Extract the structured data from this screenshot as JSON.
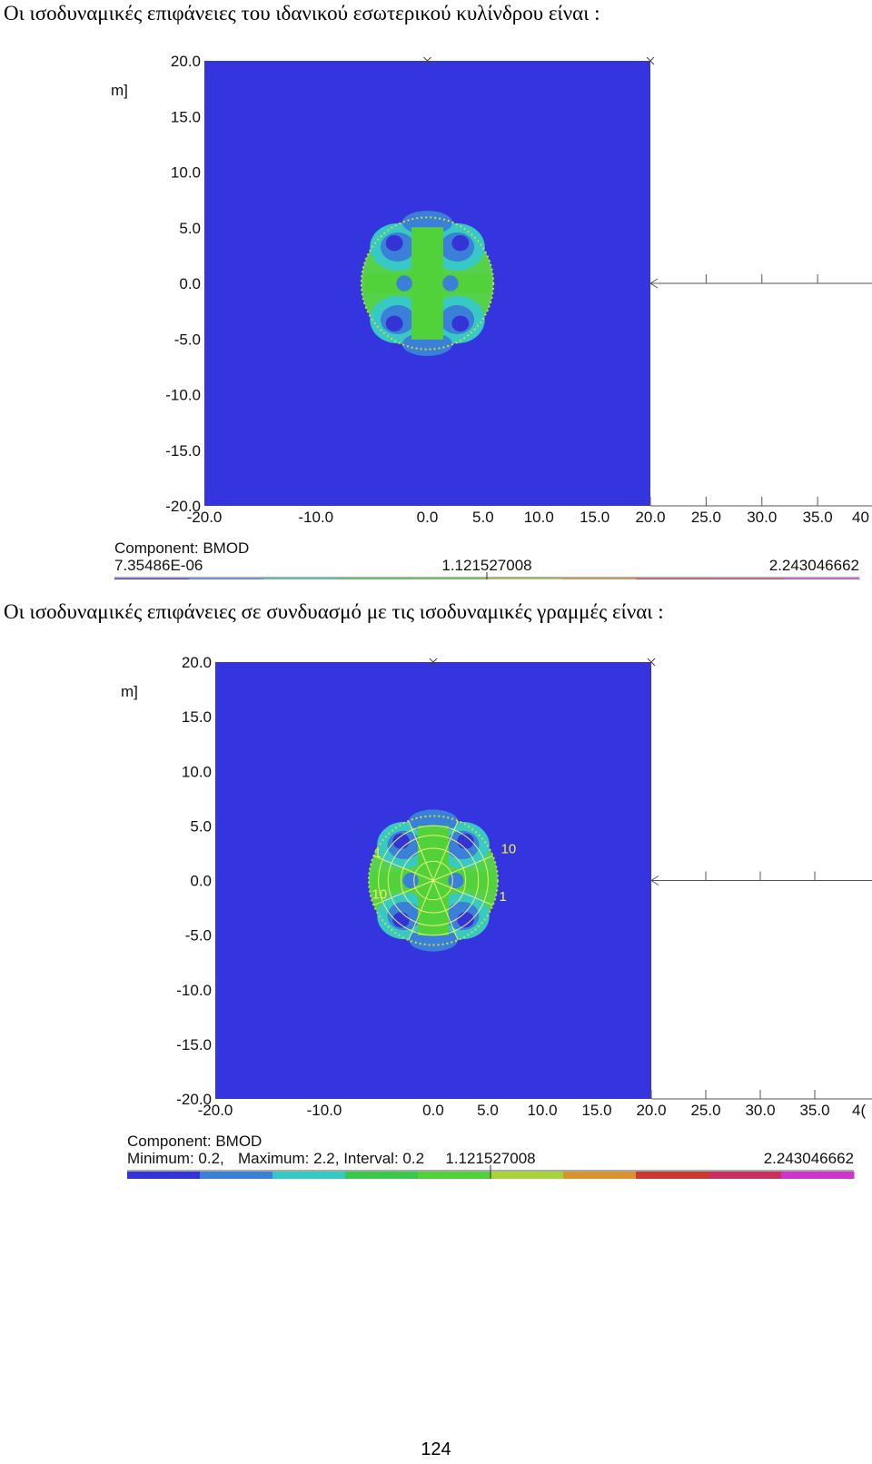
{
  "captions": {
    "first": "Οι ισοδυναμικές επιφάνειες του ιδανικού εσωτερικού κυλίνδρου είναι :",
    "second": "Οι ισοδυναμικές επιφάνειες σε συνδυασμό με τις ισοδυναμικές γραμμές είναι :"
  },
  "figures": [
    {
      "yunit_fragment": "m]",
      "yticks": [
        "20.0",
        "15.0",
        "10.0",
        "5.0",
        "0.0",
        "-5.0",
        "-10.0",
        "-15.0",
        "-20.0"
      ],
      "xticks": [
        "-20.0",
        "-10.0",
        "0.0",
        "5.0",
        "10.0",
        "15.0",
        "20.0",
        "25.0",
        "30.0",
        "35.0",
        "40"
      ],
      "component": "Component: BMOD",
      "legend_min": "7.35486E-06",
      "legend_mid": "1.121527008",
      "legend_max": "2.243046662"
    },
    {
      "yunit_fragment": "m]",
      "yticks": [
        "20.0",
        "15.0",
        "10.0",
        "5.0",
        "0.0",
        "-5.0",
        "-10.0",
        "-15.0",
        "-20.0"
      ],
      "xticks": [
        "-20.0",
        "-10.0",
        "0.0",
        "5.0",
        "10.0",
        "15.0",
        "20.0",
        "25.0",
        "30.0",
        "35.0",
        "4("
      ],
      "component": "Component: BMOD",
      "legend_min": "Minimum: 0.2,",
      "legend_extra": "Maximum: 2.2,  Interval: 0.2",
      "legend_mid": "1.121527008",
      "legend_max": "2.243046662",
      "contour_labels": [
        "10",
        "10",
        "1",
        "1"
      ]
    }
  ],
  "colors": {
    "field": "#3535e0",
    "scale": [
      "#3333d6",
      "#3a80d8",
      "#35c9c4",
      "#38c84a",
      "#52d23a",
      "#a6d33a",
      "#d8922e",
      "#c83a30",
      "#c8305e",
      "#cf35c8"
    ]
  },
  "page_number": "124"
}
